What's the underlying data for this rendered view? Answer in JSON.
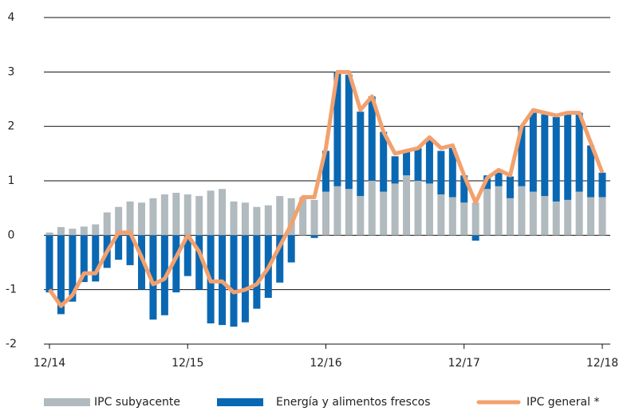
{
  "chart_data": {
    "type": "bar-line",
    "categories": [
      "12/14",
      null,
      null,
      null,
      null,
      null,
      null,
      null,
      null,
      null,
      null,
      null,
      "12/15",
      null,
      null,
      null,
      null,
      null,
      null,
      null,
      null,
      null,
      null,
      null,
      "12/16",
      null,
      null,
      null,
      null,
      null,
      null,
      null,
      null,
      null,
      null,
      null,
      "12/17",
      null,
      null,
      null,
      null,
      null,
      null,
      null,
      null,
      null,
      null,
      null,
      "12/18"
    ],
    "series": [
      {
        "name": "IPC subyacente",
        "color": "#b1babe",
        "kind": "bar",
        "values": [
          0.05,
          0.15,
          0.12,
          0.16,
          0.2,
          0.42,
          0.52,
          0.62,
          0.6,
          0.68,
          0.75,
          0.78,
          0.75,
          0.72,
          0.82,
          0.85,
          0.62,
          0.6,
          0.52,
          0.55,
          0.72,
          0.68,
          0.7,
          0.65,
          0.8,
          0.9,
          0.85,
          0.72,
          1.0,
          0.8,
          0.95,
          1.1,
          1.0,
          0.95,
          0.75,
          0.7,
          0.6,
          0.6,
          0.85,
          0.9,
          0.68,
          0.9,
          0.8,
          0.72,
          0.62,
          0.65,
          0.8,
          0.7,
          0.7
        ]
      },
      {
        "name": "Energía y alimentos frescos",
        "color": "#0a68b3",
        "kind": "bar",
        "values": [
          -1.05,
          -1.45,
          -1.22,
          -0.86,
          -0.85,
          -0.6,
          -0.45,
          -0.55,
          -1.0,
          -1.55,
          -1.47,
          -1.05,
          -0.75,
          -1.0,
          -1.62,
          -1.65,
          -1.68,
          -1.6,
          -1.35,
          -1.15,
          -0.87,
          -0.5,
          0.0,
          -0.05,
          0.75,
          2.1,
          2.1,
          1.55,
          1.55,
          1.1,
          0.5,
          0.45,
          0.6,
          0.8,
          0.8,
          0.9,
          0.5,
          -0.1,
          0.25,
          0.25,
          0.4,
          1.1,
          1.45,
          1.5,
          1.55,
          1.6,
          1.45,
          0.95,
          0.45
        ]
      },
      {
        "name": "IPC general *",
        "color": "#f2a16e",
        "kind": "line",
        "values": [
          -1.0,
          -1.3,
          -1.1,
          -0.7,
          -0.7,
          -0.3,
          0.05,
          0.05,
          -0.4,
          -0.9,
          -0.8,
          -0.4,
          0.0,
          -0.3,
          -0.85,
          -0.85,
          -1.05,
          -1.0,
          -0.9,
          -0.6,
          -0.2,
          0.2,
          0.7,
          0.7,
          1.6,
          3.0,
          3.0,
          2.3,
          2.55,
          1.9,
          1.5,
          1.55,
          1.6,
          1.8,
          1.6,
          1.65,
          1.1,
          0.6,
          1.05,
          1.2,
          1.1,
          2.0,
          2.3,
          2.25,
          2.2,
          2.25,
          2.25,
          1.7,
          1.15
        ]
      }
    ],
    "ylim": [
      -2,
      4
    ],
    "yticks": [
      -2,
      -1,
      0,
      1,
      2,
      3,
      4
    ],
    "grid": true
  }
}
